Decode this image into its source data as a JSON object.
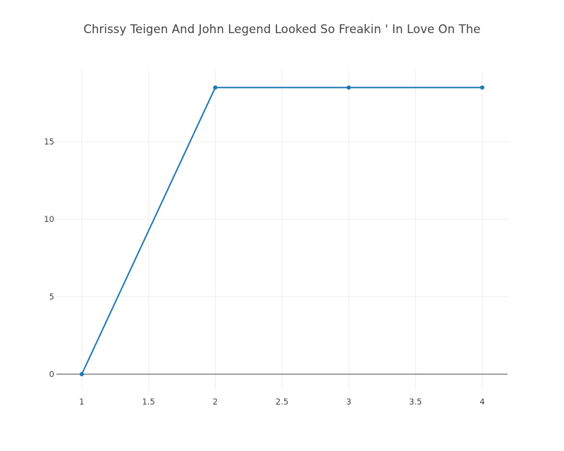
{
  "chart_data": {
    "type": "line",
    "title": "Chrissy Teigen And John Legend Looked So Freakin ' In Love On The",
    "xlabel": "",
    "ylabel": "",
    "x": [
      1,
      2,
      3,
      4
    ],
    "series": [
      {
        "values": [
          0,
          18.5,
          18.5,
          18.5
        ],
        "color": "#1f77b4"
      }
    ],
    "xlim": [
      0.81,
      4.19
    ],
    "ylim": [
      -1,
      19.6
    ],
    "xticks": [
      1,
      1.5,
      2,
      2.5,
      3,
      3.5,
      4
    ],
    "xtick_labels": [
      "1",
      "1.5",
      "2",
      "2.5",
      "3",
      "3.5",
      "4"
    ],
    "yticks": [
      0,
      5,
      10,
      15
    ],
    "ytick_labels": [
      "0",
      "5",
      "10",
      "15"
    ],
    "grid": true,
    "legend": "none",
    "colors": {
      "line": "#1f77b4",
      "grid": "#eeeeee",
      "zeroline": "#444444",
      "text": "#444444"
    }
  }
}
